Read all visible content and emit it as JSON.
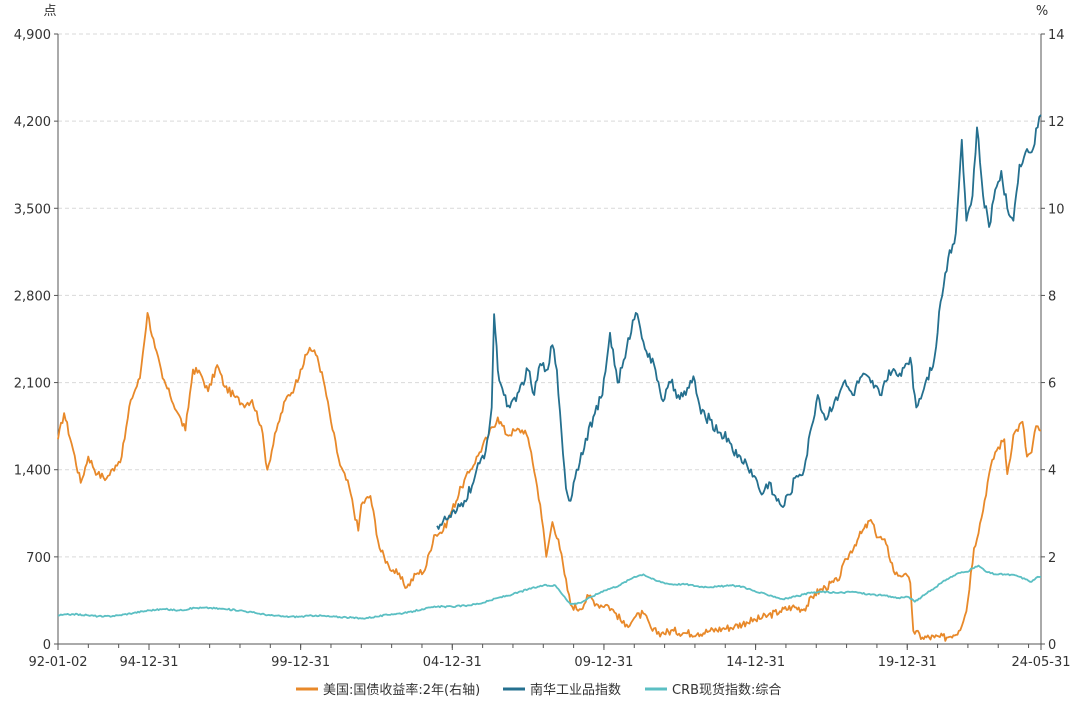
{
  "chart_data": {
    "type": "line",
    "left_axis": {
      "unit": "点",
      "ticks": [
        0,
        700,
        1400,
        2100,
        2800,
        3500,
        4200,
        4900
      ],
      "tick_labels": [
        "0",
        "700",
        "1,400",
        "2,100",
        "2,800",
        "3,500",
        "4,200",
        "4,900"
      ],
      "range": [
        0,
        4900
      ]
    },
    "right_axis": {
      "unit": "%",
      "ticks": [
        0,
        2,
        4,
        6,
        8,
        10,
        12,
        14
      ],
      "tick_labels": [
        "0",
        "2",
        "4",
        "6",
        "8",
        "10",
        "12",
        "14"
      ],
      "range": [
        0,
        14
      ]
    },
    "x_axis": {
      "tick_labels": [
        "92-01-02",
        "94-12-31",
        "99-12-31",
        "04-12-31",
        "09-12-31",
        "14-12-31",
        "19-12-31",
        "24-05-31"
      ],
      "tick_years": [
        1992.0,
        1995.0,
        2000.0,
        2005.0,
        2010.0,
        2015.0,
        2020.0,
        2024.41
      ],
      "range": [
        1992.0,
        2024.41
      ]
    },
    "series": [
      {
        "name": "美国:国债收益率:2年(右轴)",
        "axis": "right",
        "color": "#e8892a",
        "points": [
          [
            1992.0,
            4.7
          ],
          [
            1992.2,
            5.3
          ],
          [
            1992.45,
            4.6
          ],
          [
            1992.75,
            3.7
          ],
          [
            1993.0,
            4.3
          ],
          [
            1993.3,
            3.9
          ],
          [
            1993.6,
            3.8
          ],
          [
            1993.9,
            4.1
          ],
          [
            1994.1,
            4.3
          ],
          [
            1994.4,
            5.6
          ],
          [
            1994.7,
            6.1
          ],
          [
            1994.95,
            7.6
          ],
          [
            1995.2,
            6.8
          ],
          [
            1995.45,
            6.1
          ],
          [
            1995.7,
            5.7
          ],
          [
            1995.95,
            5.3
          ],
          [
            1996.2,
            4.9
          ],
          [
            1996.45,
            6.3
          ],
          [
            1996.7,
            6.2
          ],
          [
            1996.95,
            5.8
          ],
          [
            1997.25,
            6.4
          ],
          [
            1997.5,
            5.9
          ],
          [
            1997.8,
            5.7
          ],
          [
            1998.1,
            5.5
          ],
          [
            1998.4,
            5.6
          ],
          [
            1998.7,
            5.0
          ],
          [
            1998.9,
            4.0
          ],
          [
            1999.2,
            4.9
          ],
          [
            1999.5,
            5.6
          ],
          [
            1999.8,
            5.9
          ],
          [
            2000.0,
            6.3
          ],
          [
            2000.3,
            6.8
          ],
          [
            2000.55,
            6.6
          ],
          [
            2000.8,
            5.9
          ],
          [
            2001.0,
            5.1
          ],
          [
            2001.3,
            4.1
          ],
          [
            2001.6,
            3.6
          ],
          [
            2001.9,
            2.6
          ],
          [
            2002.0,
            3.2
          ],
          [
            2002.3,
            3.4
          ],
          [
            2002.6,
            2.2
          ],
          [
            2002.9,
            1.8
          ],
          [
            2003.2,
            1.6
          ],
          [
            2003.5,
            1.3
          ],
          [
            2003.8,
            1.6
          ],
          [
            2004.1,
            1.7
          ],
          [
            2004.4,
            2.5
          ],
          [
            2004.7,
            2.6
          ],
          [
            2004.95,
            3.0
          ],
          [
            2005.3,
            3.6
          ],
          [
            2005.6,
            4.0
          ],
          [
            2005.9,
            4.4
          ],
          [
            2006.2,
            4.8
          ],
          [
            2006.5,
            5.2
          ],
          [
            2006.8,
            4.8
          ],
          [
            2007.1,
            4.9
          ],
          [
            2007.4,
            4.9
          ],
          [
            2007.6,
            4.4
          ],
          [
            2007.9,
            3.2
          ],
          [
            2008.1,
            2.0
          ],
          [
            2008.3,
            2.8
          ],
          [
            2008.5,
            2.4
          ],
          [
            2008.7,
            1.6
          ],
          [
            2008.9,
            0.9
          ],
          [
            2009.2,
            0.8
          ],
          [
            2009.5,
            1.1
          ],
          [
            2009.8,
            0.9
          ],
          [
            2010.1,
            0.9
          ],
          [
            2010.4,
            0.7
          ],
          [
            2010.7,
            0.4
          ],
          [
            2011.0,
            0.6
          ],
          [
            2011.3,
            0.7
          ],
          [
            2011.6,
            0.3
          ],
          [
            2011.9,
            0.25
          ],
          [
            2012.3,
            0.3
          ],
          [
            2012.7,
            0.25
          ],
          [
            2013.1,
            0.25
          ],
          [
            2013.5,
            0.3
          ],
          [
            2013.9,
            0.35
          ],
          [
            2014.3,
            0.4
          ],
          [
            2014.7,
            0.5
          ],
          [
            2015.0,
            0.55
          ],
          [
            2015.4,
            0.65
          ],
          [
            2015.8,
            0.75
          ],
          [
            2016.2,
            0.85
          ],
          [
            2016.6,
            0.8
          ],
          [
            2016.95,
            1.15
          ],
          [
            2017.3,
            1.3
          ],
          [
            2017.7,
            1.45
          ],
          [
            2018.0,
            1.95
          ],
          [
            2018.4,
            2.45
          ],
          [
            2018.8,
            2.85
          ],
          [
            2018.95,
            2.55
          ],
          [
            2019.3,
            2.3
          ],
          [
            2019.6,
            1.6
          ],
          [
            2019.9,
            1.6
          ],
          [
            2020.1,
            1.4
          ],
          [
            2020.2,
            0.3
          ],
          [
            2020.5,
            0.15
          ],
          [
            2020.9,
            0.15
          ],
          [
            2021.3,
            0.15
          ],
          [
            2021.7,
            0.3
          ],
          [
            2021.95,
            0.75
          ],
          [
            2022.2,
            2.2
          ],
          [
            2022.45,
            2.9
          ],
          [
            2022.7,
            3.9
          ],
          [
            2022.9,
            4.4
          ],
          [
            2023.2,
            4.7
          ],
          [
            2023.3,
            3.9
          ],
          [
            2023.5,
            4.8
          ],
          [
            2023.8,
            5.1
          ],
          [
            2023.95,
            4.3
          ],
          [
            2024.1,
            4.4
          ],
          [
            2024.25,
            5.0
          ],
          [
            2024.41,
            4.9
          ]
        ]
      },
      {
        "name": "南华工业品指数",
        "axis": "left",
        "color": "#25708f",
        "points": [
          [
            2004.5,
            950
          ],
          [
            2004.8,
            1000
          ],
          [
            2005.1,
            1050
          ],
          [
            2005.4,
            1150
          ],
          [
            2005.7,
            1300
          ],
          [
            2005.9,
            1450
          ],
          [
            2006.1,
            1550
          ],
          [
            2006.3,
            1900
          ],
          [
            2006.38,
            2650
          ],
          [
            2006.5,
            2200
          ],
          [
            2006.7,
            2000
          ],
          [
            2006.9,
            1900
          ],
          [
            2007.1,
            1950
          ],
          [
            2007.3,
            2100
          ],
          [
            2007.5,
            2200
          ],
          [
            2007.7,
            2000
          ],
          [
            2007.9,
            2250
          ],
          [
            2008.1,
            2200
          ],
          [
            2008.3,
            2400
          ],
          [
            2008.45,
            2200
          ],
          [
            2008.6,
            1700
          ],
          [
            2008.75,
            1250
          ],
          [
            2008.9,
            1150
          ],
          [
            2009.1,
            1400
          ],
          [
            2009.4,
            1650
          ],
          [
            2009.7,
            1850
          ],
          [
            2009.95,
            2000
          ],
          [
            2010.2,
            2500
          ],
          [
            2010.45,
            2100
          ],
          [
            2010.7,
            2300
          ],
          [
            2010.95,
            2600
          ],
          [
            2011.1,
            2650
          ],
          [
            2011.4,
            2350
          ],
          [
            2011.7,
            2200
          ],
          [
            2011.95,
            1950
          ],
          [
            2012.2,
            2100
          ],
          [
            2012.45,
            2000
          ],
          [
            2012.7,
            2000
          ],
          [
            2012.95,
            2150
          ],
          [
            2013.2,
            1850
          ],
          [
            2013.5,
            1800
          ],
          [
            2013.8,
            1700
          ],
          [
            2014.1,
            1650
          ],
          [
            2014.4,
            1500
          ],
          [
            2014.7,
            1450
          ],
          [
            2014.95,
            1350
          ],
          [
            2015.2,
            1200
          ],
          [
            2015.45,
            1300
          ],
          [
            2015.7,
            1150
          ],
          [
            2015.9,
            1100
          ],
          [
            2016.1,
            1200
          ],
          [
            2016.35,
            1350
          ],
          [
            2016.6,
            1400
          ],
          [
            2016.85,
            1750
          ],
          [
            2017.05,
            2000
          ],
          [
            2017.3,
            1800
          ],
          [
            2017.6,
            1950
          ],
          [
            2017.9,
            2100
          ],
          [
            2018.2,
            2000
          ],
          [
            2018.5,
            2150
          ],
          [
            2018.8,
            2100
          ],
          [
            2019.1,
            2000
          ],
          [
            2019.4,
            2200
          ],
          [
            2019.7,
            2150
          ],
          [
            2019.95,
            2250
          ],
          [
            2020.1,
            2300
          ],
          [
            2020.3,
            1900
          ],
          [
            2020.6,
            2100
          ],
          [
            2020.9,
            2300
          ],
          [
            2021.1,
            2750
          ],
          [
            2021.35,
            3100
          ],
          [
            2021.6,
            3300
          ],
          [
            2021.8,
            4050
          ],
          [
            2021.95,
            3400
          ],
          [
            2022.15,
            3600
          ],
          [
            2022.3,
            4150
          ],
          [
            2022.5,
            3600
          ],
          [
            2022.7,
            3350
          ],
          [
            2022.9,
            3650
          ],
          [
            2023.1,
            3800
          ],
          [
            2023.3,
            3500
          ],
          [
            2023.5,
            3400
          ],
          [
            2023.7,
            3850
          ],
          [
            2023.9,
            3950
          ],
          [
            2024.1,
            3950
          ],
          [
            2024.3,
            4150
          ],
          [
            2024.41,
            4250
          ]
        ]
      },
      {
        "name": "CRB现货指数:综合",
        "axis": "left",
        "color": "#5bbfc3",
        "points": [
          [
            1992.0,
            230
          ],
          [
            1992.5,
            240
          ],
          [
            1993.0,
            230
          ],
          [
            1993.5,
            220
          ],
          [
            1994.0,
            230
          ],
          [
            1994.5,
            250
          ],
          [
            1995.0,
            270
          ],
          [
            1995.5,
            280
          ],
          [
            1996.0,
            270
          ],
          [
            1996.5,
            290
          ],
          [
            1997.0,
            290
          ],
          [
            1997.5,
            280
          ],
          [
            1998.0,
            270
          ],
          [
            1998.5,
            250
          ],
          [
            1999.0,
            230
          ],
          [
            1999.5,
            220
          ],
          [
            2000.0,
            220
          ],
          [
            2000.5,
            230
          ],
          [
            2001.0,
            220
          ],
          [
            2001.5,
            215
          ],
          [
            2002.0,
            205
          ],
          [
            2002.5,
            220
          ],
          [
            2003.0,
            240
          ],
          [
            2003.5,
            250
          ],
          [
            2004.0,
            280
          ],
          [
            2004.5,
            300
          ],
          [
            2005.0,
            300
          ],
          [
            2005.5,
            310
          ],
          [
            2006.0,
            330
          ],
          [
            2006.5,
            370
          ],
          [
            2007.0,
            400
          ],
          [
            2007.5,
            440
          ],
          [
            2008.0,
            470
          ],
          [
            2008.4,
            470
          ],
          [
            2008.7,
            380
          ],
          [
            2008.9,
            320
          ],
          [
            2009.2,
            330
          ],
          [
            2009.6,
            380
          ],
          [
            2010.0,
            430
          ],
          [
            2010.5,
            470
          ],
          [
            2011.0,
            540
          ],
          [
            2011.3,
            560
          ],
          [
            2011.7,
            510
          ],
          [
            2012.2,
            480
          ],
          [
            2012.7,
            480
          ],
          [
            2013.2,
            460
          ],
          [
            2013.7,
            460
          ],
          [
            2014.2,
            470
          ],
          [
            2014.6,
            460
          ],
          [
            2015.0,
            420
          ],
          [
            2015.5,
            390
          ],
          [
            2015.9,
            360
          ],
          [
            2016.3,
            380
          ],
          [
            2016.8,
            410
          ],
          [
            2017.2,
            420
          ],
          [
            2017.7,
            410
          ],
          [
            2018.2,
            420
          ],
          [
            2018.7,
            400
          ],
          [
            2019.2,
            390
          ],
          [
            2019.7,
            370
          ],
          [
            2020.0,
            380
          ],
          [
            2020.25,
            340
          ],
          [
            2020.6,
            400
          ],
          [
            2020.9,
            450
          ],
          [
            2021.3,
            520
          ],
          [
            2021.7,
            570
          ],
          [
            2021.95,
            580
          ],
          [
            2022.2,
            610
          ],
          [
            2022.35,
            630
          ],
          [
            2022.6,
            580
          ],
          [
            2022.9,
            560
          ],
          [
            2023.2,
            560
          ],
          [
            2023.6,
            550
          ],
          [
            2023.9,
            520
          ],
          [
            2024.1,
            500
          ],
          [
            2024.3,
            540
          ],
          [
            2024.41,
            540
          ]
        ]
      }
    ],
    "legend": {
      "placement": "bottom",
      "labels": [
        "美国:国债收益率:2年(右轴)",
        "南华工业品指数",
        "CRB现货指数:综合"
      ]
    },
    "grid": true
  }
}
